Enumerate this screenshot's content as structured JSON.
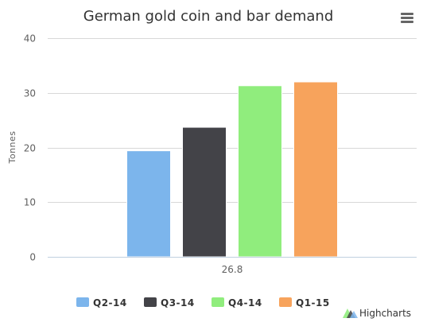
{
  "chart_data": {
    "type": "bar",
    "title": "German gold coin and bar demand",
    "ylabel": "Tonnes",
    "xlabel": "",
    "categories": [
      "26.8"
    ],
    "ylim": [
      0,
      40
    ],
    "yticks": [
      0,
      10,
      20,
      30,
      40
    ],
    "grid": true,
    "legend_position": "bottom",
    "series": [
      {
        "name": "Q2-14",
        "values": [
          19.4
        ],
        "color": "#7cb5ec"
      },
      {
        "name": "Q3-14",
        "values": [
          23.7
        ],
        "color": "#434348"
      },
      {
        "name": "Q4-14",
        "values": [
          31.3
        ],
        "color": "#90ed7d"
      },
      {
        "name": "Q1-15",
        "values": [
          32.0
        ],
        "color": "#f7a35c"
      }
    ]
  },
  "menu": {
    "icon": "hamburger-menu-icon"
  },
  "credits": {
    "text": "Highcharts",
    "icon": "highcharts-logo-icon"
  },
  "colors": {
    "grid": "#d8d8d8",
    "axis_text": "#606060",
    "title": "#333333",
    "menu_icon": "#666666"
  }
}
